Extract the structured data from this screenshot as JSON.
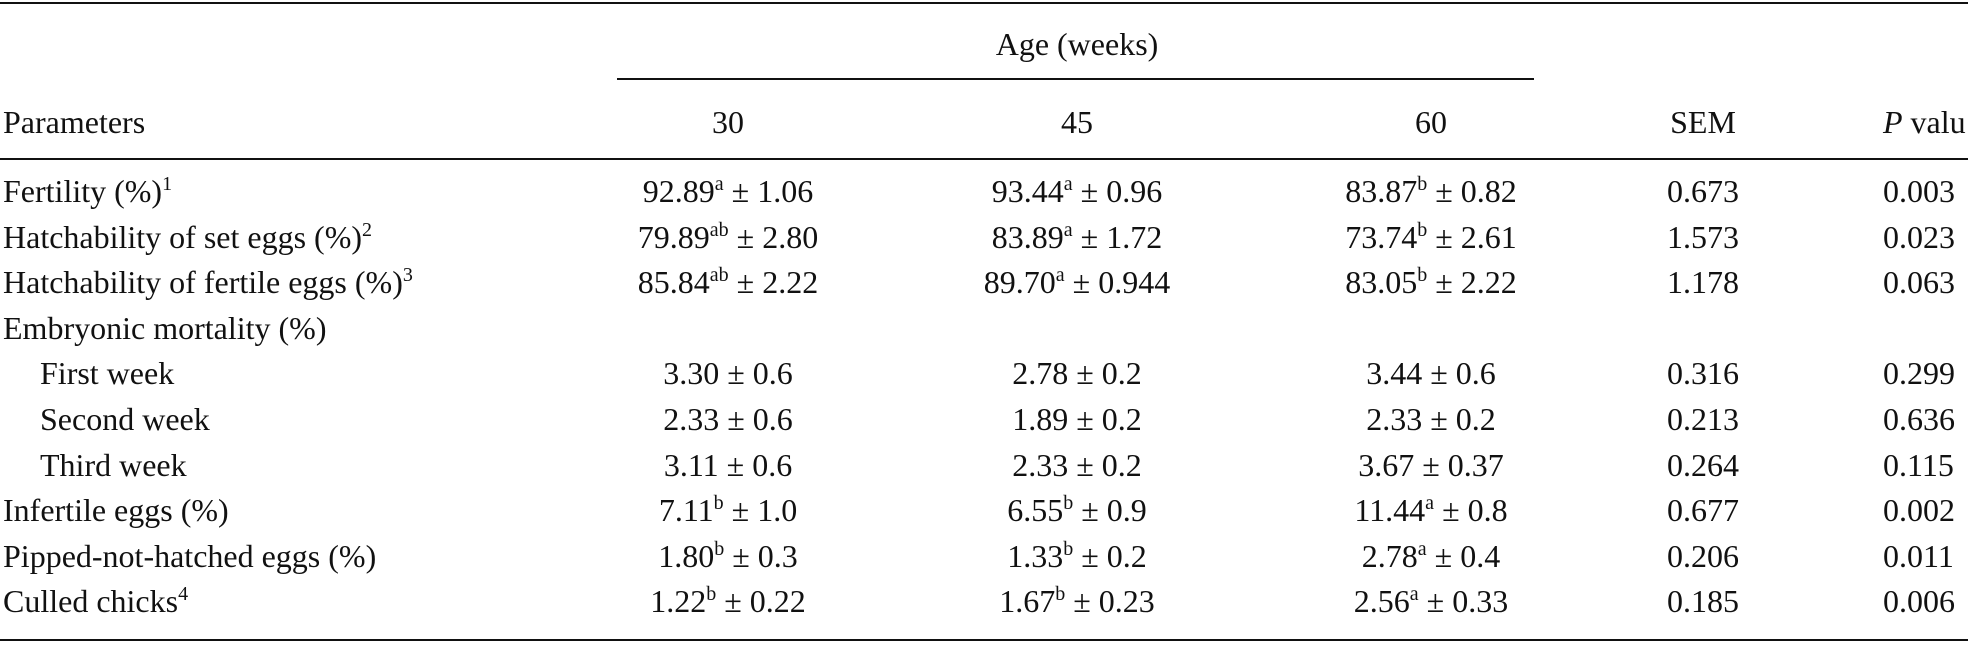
{
  "header": {
    "group": "Age (weeks)",
    "columns": [
      "Parameters",
      "30",
      "45",
      "60",
      "SEM"
    ],
    "p_label": {
      "italic": "P",
      "rest": "valu"
    }
  },
  "rows": [
    {
      "label": "Fertility (%)",
      "note": "1",
      "cells": [
        {
          "mean": "92.89",
          "sup": "a",
          "sd": "± 1.06"
        },
        {
          "mean": "93.44",
          "sup": "a",
          "sd": "± 0.96"
        },
        {
          "mean": "83.87",
          "sup": "b",
          "sd": "± 0.82"
        }
      ],
      "sem": "0.673",
      "p": "0.003"
    },
    {
      "label": "Hatchability of set eggs (%)",
      "note": "2",
      "cells": [
        {
          "mean": "79.89",
          "sup": "ab",
          "sd": "± 2.80"
        },
        {
          "mean": "83.89",
          "sup": "a",
          "sd": "± 1.72"
        },
        {
          "mean": "73.74",
          "sup": "b",
          "sd": "± 2.61"
        }
      ],
      "sem": "1.573",
      "p": "0.023"
    },
    {
      "label": "Hatchability of fertile eggs (%)",
      "note": "3",
      "cells": [
        {
          "mean": "85.84",
          "sup": "ab",
          "sd": "± 2.22"
        },
        {
          "mean": "89.70",
          "sup": "a",
          "sd": "± 0.944"
        },
        {
          "mean": "83.05",
          "sup": "b",
          "sd": "± 2.22"
        }
      ],
      "sem": "1.178",
      "p": "0.063"
    },
    {
      "label": "Embryonic mortality (%)",
      "subrows": [
        {
          "label": "First week",
          "cells": [
            {
              "mean": "3.30",
              "sd": "± 0.6"
            },
            {
              "mean": "2.78",
              "sd": "± 0.2"
            },
            {
              "mean": "3.44",
              "sd": "± 0.6"
            }
          ],
          "sem": "0.316",
          "p": "0.299"
        },
        {
          "label": "Second week",
          "cells": [
            {
              "mean": "2.33",
              "sd": "± 0.6"
            },
            {
              "mean": "1.89",
              "sd": "± 0.2"
            },
            {
              "mean": "2.33",
              "sd": "± 0.2"
            }
          ],
          "sem": "0.213",
          "p": "0.636"
        },
        {
          "label": "Third week",
          "cells": [
            {
              "mean": "3.11",
              "sd": "± 0.6"
            },
            {
              "mean": "2.33",
              "sd": "± 0.2"
            },
            {
              "mean": "3.67",
              "sd": "± 0.37"
            }
          ],
          "sem": "0.264",
          "p": "0.115"
        }
      ]
    },
    {
      "label": "Infertile eggs (%)",
      "cells": [
        {
          "mean": "7.11",
          "sup": "b",
          "sd": "± 1.0"
        },
        {
          "mean": "6.55",
          "sup": "b",
          "sd": "± 0.9"
        },
        {
          "mean": "11.44",
          "sup": "a",
          "sd": "± 0.8"
        }
      ],
      "sem": "0.677",
      "p": "0.002"
    },
    {
      "label": "Pipped-not-hatched eggs (%)",
      "cells": [
        {
          "mean": "1.80",
          "sup": "b",
          "sd": "± 0.3"
        },
        {
          "mean": "1.33",
          "sup": "b",
          "sd": "± 0.2"
        },
        {
          "mean": "2.78",
          "sup": "a",
          "sd": "± 0.4"
        }
      ],
      "sem": "0.206",
      "p": "0.011"
    },
    {
      "label": "Culled chicks",
      "note": "4",
      "cells": [
        {
          "mean": "1.22",
          "sup": "b",
          "sd": "± 0.22"
        },
        {
          "mean": "1.67",
          "sup": "b",
          "sd": "± 0.23"
        },
        {
          "mean": "2.56",
          "sup": "a",
          "sd": "± 0.33"
        }
      ],
      "sem": "0.185",
      "p": "0.006"
    }
  ]
}
